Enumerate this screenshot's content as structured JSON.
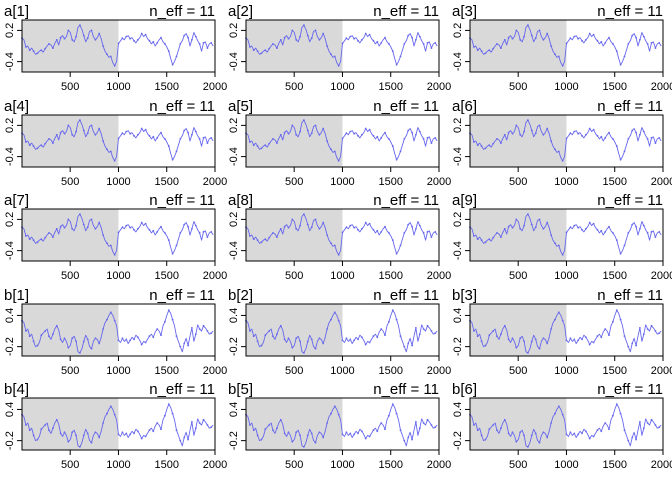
{
  "chart_data": {
    "type": "line",
    "layout": "grid",
    "rows": 5,
    "cols": 3,
    "x_ticks": [
      500,
      1000,
      1500,
      2000
    ],
    "xlim": [
      1,
      2000
    ],
    "warmup_end": 1000,
    "warmup_shade": "#d9d9d9",
    "line_color": "#6666ee",
    "grid": false,
    "sample_x_step": 20,
    "traces": {
      "a": [
        0.05,
        0.02,
        -0.12,
        -0.1,
        -0.18,
        -0.14,
        -0.2,
        -0.26,
        -0.24,
        -0.2,
        -0.18,
        -0.22,
        -0.15,
        -0.1,
        -0.06,
        -0.08,
        -0.14,
        -0.05,
        0.02,
        -0.08,
        0.06,
        0.1,
        0.04,
        0.08,
        0.2,
        0.16,
        0.02,
        -0.02,
        0.08,
        0.26,
        0.3,
        0.22,
        0.1,
        -0.02,
        0.05,
        0.18,
        0.2,
        0.08,
        0.02,
        0.06,
        0.14,
        0.04,
        -0.1,
        -0.2,
        -0.26,
        -0.32,
        -0.3,
        -0.42,
        -0.48,
        -0.4,
        -0.05,
        0.0,
        0.05,
        0.02,
        0.08,
        0.1,
        0.04,
        0.06,
        0.0,
        -0.04,
        0.02,
        0.06,
        0.14,
        0.08,
        0.12,
        0.04,
        0.0,
        -0.06,
        -0.02,
        -0.1,
        -0.04,
        0.02,
        0.06,
        -0.02,
        -0.06,
        -0.12,
        -0.2,
        -0.34,
        -0.46,
        -0.4,
        -0.3,
        -0.18,
        -0.06,
        0.0,
        0.1,
        0.14,
        0.06,
        -0.1,
        0.02,
        0.16,
        0.08,
        0.0,
        -0.06,
        -0.2,
        -0.04,
        -0.02,
        -0.14,
        -0.06,
        -0.04,
        -0.1
      ],
      "b": [
        0.3,
        0.26,
        0.1,
        0.14,
        0.0,
        0.04,
        -0.1,
        -0.2,
        -0.18,
        -0.12,
        0.02,
        0.06,
        0.1,
        0.14,
        0.0,
        -0.06,
        0.04,
        0.14,
        0.2,
        0.12,
        -0.06,
        -0.12,
        -0.04,
        -0.1,
        -0.22,
        -0.18,
        -0.04,
        0.0,
        -0.1,
        -0.3,
        -0.32,
        -0.24,
        -0.1,
        0.02,
        -0.06,
        -0.2,
        -0.24,
        -0.1,
        -0.04,
        -0.06,
        -0.14,
        -0.02,
        0.14,
        0.26,
        0.32,
        0.4,
        0.46,
        0.4,
        0.3,
        0.2,
        -0.08,
        -0.12,
        -0.04,
        -0.1,
        -0.06,
        -0.14,
        -0.08,
        -0.02,
        -0.06,
        0.02,
        -0.02,
        -0.08,
        -0.16,
        -0.1,
        -0.12,
        -0.06,
        0.0,
        0.04,
        -0.02,
        0.08,
        0.14,
        0.1,
        0.02,
        0.2,
        0.28,
        0.4,
        0.5,
        0.44,
        0.32,
        0.2,
        0.0,
        -0.1,
        -0.2,
        -0.3,
        -0.14,
        -0.04,
        -0.18,
        0.0,
        0.16,
        -0.1,
        0.04,
        0.22,
        0.14,
        0.1,
        0.2,
        0.16,
        0.1,
        0.04,
        0.06,
        0.1
      ]
    },
    "panels": [
      {
        "title": "a[1]",
        "neff": "n_eff = 11",
        "trace": "a",
        "ylim": [
          -0.6,
          0.4
        ],
        "yticks": [
          -0.4,
          0.2
        ],
        "ytick_labels": [
          "-0.4",
          "0.2"
        ]
      },
      {
        "title": "a[2]",
        "neff": "n_eff = 11",
        "trace": "a",
        "ylim": [
          -0.6,
          0.4
        ],
        "yticks": [
          -0.4,
          0.2
        ],
        "ytick_labels": [
          "-0.4",
          "0.2"
        ]
      },
      {
        "title": "a[3]",
        "neff": "n_eff = 11",
        "trace": "a",
        "ylim": [
          -0.6,
          0.4
        ],
        "yticks": [
          -0.4,
          0.2
        ],
        "ytick_labels": [
          "-0.4",
          "0.2"
        ]
      },
      {
        "title": "a[4]",
        "neff": "n_eff = 11",
        "trace": "a",
        "ylim": [
          -0.6,
          0.4
        ],
        "yticks": [
          -0.4,
          0.2
        ],
        "ytick_labels": [
          "-0.4",
          "0.2"
        ]
      },
      {
        "title": "a[5]",
        "neff": "n_eff = 11",
        "trace": "a",
        "ylim": [
          -0.6,
          0.4
        ],
        "yticks": [
          -0.4,
          0.2
        ],
        "ytick_labels": [
          "-0.4",
          "0.2"
        ]
      },
      {
        "title": "a[6]",
        "neff": "n_eff = 11",
        "trace": "a",
        "ylim": [
          -0.6,
          0.4
        ],
        "yticks": [
          -0.4,
          0.2
        ],
        "ytick_labels": [
          "-0.4",
          "0.2"
        ]
      },
      {
        "title": "a[7]",
        "neff": "n_eff = 11",
        "trace": "a",
        "ylim": [
          -0.6,
          0.4
        ],
        "yticks": [
          -0.4,
          0.2
        ],
        "ytick_labels": [
          "-0.4",
          "0.2"
        ]
      },
      {
        "title": "a[8]",
        "neff": "n_eff = 11",
        "trace": "a",
        "ylim": [
          -0.6,
          0.4
        ],
        "yticks": [
          -0.4,
          0.2
        ],
        "ytick_labels": [
          "-0.4",
          "0.2"
        ]
      },
      {
        "title": "a[9]",
        "neff": "n_eff = 11",
        "trace": "a",
        "ylim": [
          -0.6,
          0.4
        ],
        "yticks": [
          -0.4,
          0.2
        ],
        "ytick_labels": [
          "-0.4",
          "0.2"
        ]
      },
      {
        "title": "b[1]",
        "neff": "n_eff = 11",
        "trace": "b",
        "ylim": [
          -0.38,
          0.62
        ],
        "yticks": [
          -0.2,
          0.4
        ],
        "ytick_labels": [
          "-0.2",
          "0.4"
        ]
      },
      {
        "title": "b[2]",
        "neff": "n_eff = 11",
        "trace": "b",
        "ylim": [
          -0.38,
          0.62
        ],
        "yticks": [
          -0.2,
          0.4
        ],
        "ytick_labels": [
          "-0.2",
          "0.4"
        ]
      },
      {
        "title": "b[3]",
        "neff": "n_eff = 11",
        "trace": "b",
        "ylim": [
          -0.38,
          0.62
        ],
        "yticks": [
          -0.2,
          0.4
        ],
        "ytick_labels": [
          "-0.2",
          "0.4"
        ]
      },
      {
        "title": "b[4]",
        "neff": "n_eff = 11",
        "trace": "b",
        "ylim": [
          -0.38,
          0.62
        ],
        "yticks": [
          -0.2,
          0.4
        ],
        "ytick_labels": [
          "-0.2",
          "0.4"
        ]
      },
      {
        "title": "b[5]",
        "neff": "n_eff = 11",
        "trace": "b",
        "ylim": [
          -0.38,
          0.62
        ],
        "yticks": [
          -0.2,
          0.4
        ],
        "ytick_labels": [
          "-0.2",
          "0.4"
        ]
      },
      {
        "title": "b[6]",
        "neff": "n_eff = 11",
        "trace": "b",
        "ylim": [
          -0.38,
          0.62
        ],
        "yticks": [
          -0.2,
          0.4
        ],
        "ytick_labels": [
          "-0.2",
          "0.4"
        ]
      }
    ]
  }
}
